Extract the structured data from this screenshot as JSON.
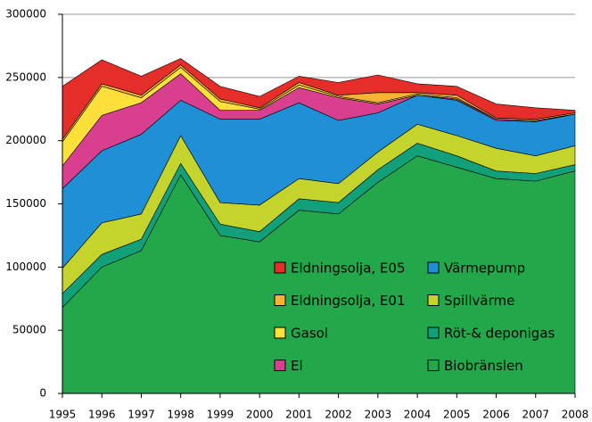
{
  "chart_data": {
    "type": "stacked_area",
    "categories": [
      "1995",
      "1996",
      "1997",
      "1998",
      "1999",
      "2000",
      "2001",
      "2002",
      "2003",
      "2004",
      "2005",
      "2006",
      "2007",
      "2008"
    ],
    "ylim": [
      0,
      300000
    ],
    "yticks": [
      0,
      50000,
      100000,
      150000,
      200000,
      250000,
      300000
    ],
    "grid": true,
    "series": [
      {
        "name": "Biobränslen",
        "color": "#22a84a",
        "values": [
          68000,
          100000,
          113000,
          173000,
          125000,
          120000,
          145000,
          142000,
          167000,
          188000,
          179000,
          170000,
          168000,
          176000
        ]
      },
      {
        "name": "Röt-& deponigas",
        "color": "#12a07a",
        "values": [
          11000,
          10000,
          9000,
          9000,
          9000,
          8000,
          9000,
          9000,
          10000,
          10000,
          9000,
          6000,
          6000,
          5000
        ]
      },
      {
        "name": "Spillvärme",
        "color": "#c4d42c",
        "values": [
          20000,
          25000,
          20000,
          22000,
          17000,
          21000,
          16000,
          15000,
          14000,
          15000,
          16000,
          18000,
          14000,
          15000
        ]
      },
      {
        "name": "Värmepump",
        "color": "#1f8fd6",
        "values": [
          63000,
          57000,
          63000,
          28000,
          66000,
          68000,
          60000,
          50000,
          31000,
          23000,
          28000,
          22000,
          27000,
          25000
        ]
      },
      {
        "name": "El",
        "color": "#d8408f",
        "values": [
          18000,
          28000,
          25000,
          21000,
          7000,
          7000,
          12000,
          18000,
          7000,
          0,
          1000,
          1000,
          1000,
          0
        ]
      },
      {
        "name": "Gasol",
        "color": "#fde03a",
        "values": [
          19000,
          23000,
          4000,
          5000,
          7000,
          1000,
          2000,
          1000,
          1000,
          1000,
          1000,
          0,
          0,
          0
        ]
      },
      {
        "name": "Eldningsolja, E01",
        "color": "#f9b233",
        "values": [
          2000,
          2000,
          2000,
          2000,
          2000,
          1000,
          2000,
          1000,
          8000,
          1000,
          2000,
          1000,
          1000,
          1000
        ]
      },
      {
        "name": "Eldningsolja, E05",
        "color": "#e52d2a",
        "values": [
          42000,
          19000,
          15000,
          5000,
          10000,
          9000,
          5000,
          10000,
          14000,
          7000,
          7000,
          11000,
          9000,
          2000
        ]
      }
    ]
  }
}
